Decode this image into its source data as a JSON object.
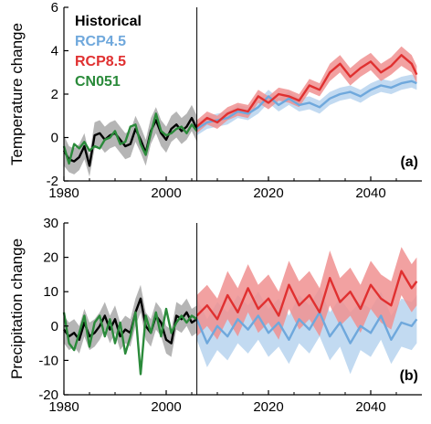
{
  "colors": {
    "historical": "#000000",
    "rcp45": "#6fa8dc",
    "rcp45_band": "#b7d3ee",
    "rcp85": "#e03030",
    "rcp85_band": "#f09090",
    "cn051": "#2a8a3a",
    "hist_band": "#a8a8a8"
  },
  "legend": {
    "historical": "Historical",
    "rcp45": "RCP4.5",
    "rcp85": "RCP8.5",
    "cn051": "CN051"
  },
  "chart_data": [
    {
      "type": "line",
      "panel_label": "(a)",
      "xlabel": "",
      "ylabel": "Temperature change",
      "xlim": [
        1980,
        2050
      ],
      "ylim": [
        -2,
        6
      ],
      "xticks": [
        1980,
        2000,
        2020,
        2040
      ],
      "yticks": [
        -2,
        0,
        2,
        4,
        6
      ],
      "divider_x": 2006,
      "legend_position": "top-left",
      "series": [
        {
          "name": "Historical",
          "key": "historical",
          "band": "hist_band",
          "x": [
            1980,
            1981,
            1982,
            1983,
            1984,
            1985,
            1986,
            1987,
            1988,
            1989,
            1990,
            1991,
            1992,
            1993,
            1994,
            1995,
            1996,
            1997,
            1998,
            1999,
            2000,
            2001,
            2002,
            2003,
            2004,
            2005,
            2006
          ],
          "values": [
            -0.6,
            -1.0,
            -1.1,
            -0.9,
            -0.4,
            -1.3,
            0.1,
            0.2,
            -0.1,
            0.1,
            0.2,
            -0.1,
            -0.4,
            -0.3,
            0.4,
            -0.1,
            -0.7,
            0.3,
            0.8,
            0.2,
            -0.1,
            0.4,
            0.6,
            0.3,
            0.5,
            0.9,
            0.4
          ],
          "lower": [
            -1.3,
            -1.6,
            -1.7,
            -1.5,
            -1.0,
            -1.8,
            -0.5,
            -0.4,
            -0.7,
            -0.5,
            -0.4,
            -0.7,
            -1.0,
            -0.9,
            -0.2,
            -0.7,
            -1.3,
            -0.3,
            0.2,
            -0.4,
            -0.7,
            -0.2,
            0.0,
            -0.3,
            -0.1,
            0.3,
            -0.2
          ],
          "upper": [
            0.1,
            -0.4,
            -0.5,
            -0.3,
            0.2,
            -0.8,
            0.7,
            0.8,
            0.5,
            0.7,
            0.8,
            0.5,
            0.2,
            0.3,
            1.0,
            0.5,
            -0.1,
            0.9,
            1.4,
            0.8,
            0.5,
            1.0,
            1.2,
            0.9,
            1.1,
            1.5,
            1.0
          ]
        },
        {
          "name": "CN051",
          "key": "cn051",
          "x": [
            1980,
            1981,
            1982,
            1983,
            1984,
            1985,
            1986,
            1987,
            1988,
            1989,
            1990,
            1991,
            1992,
            1993,
            1994,
            1995,
            1996,
            1997,
            1998,
            1999,
            2000,
            2001,
            2002,
            2003,
            2004,
            2005,
            2006
          ],
          "values": [
            -0.4,
            -1.2,
            -0.3,
            -0.5,
            -0.2,
            -0.6,
            -0.4,
            -0.5,
            -0.1,
            0.0,
            0.3,
            -0.3,
            -0.2,
            0.5,
            0.6,
            -0.3,
            -0.8,
            0.2,
            1.1,
            0.3,
            0.1,
            0.2,
            0.4,
            0.5,
            0.2,
            0.6,
            0.3
          ]
        },
        {
          "name": "RCP4.5",
          "key": "rcp45",
          "band": "rcp45_band",
          "x": [
            2006,
            2008,
            2010,
            2012,
            2014,
            2016,
            2018,
            2020,
            2022,
            2024,
            2026,
            2028,
            2030,
            2032,
            2034,
            2036,
            2038,
            2040,
            2042,
            2044,
            2046,
            2048,
            2049
          ],
          "values": [
            0.4,
            0.7,
            0.8,
            0.9,
            1.2,
            1.1,
            1.4,
            1.9,
            1.5,
            1.8,
            1.5,
            1.6,
            1.4,
            1.8,
            2.0,
            2.1,
            1.9,
            2.2,
            2.4,
            2.3,
            2.5,
            2.6,
            2.5
          ],
          "lower": [
            0.1,
            0.4,
            0.5,
            0.6,
            0.9,
            0.8,
            1.1,
            1.6,
            1.2,
            1.5,
            1.2,
            1.3,
            1.1,
            1.5,
            1.7,
            1.8,
            1.6,
            1.9,
            2.1,
            2.0,
            2.2,
            2.3,
            2.2
          ],
          "upper": [
            0.7,
            1.0,
            1.1,
            1.2,
            1.5,
            1.4,
            1.7,
            2.2,
            1.8,
            2.1,
            1.8,
            1.9,
            1.7,
            2.1,
            2.3,
            2.4,
            2.2,
            2.5,
            2.7,
            2.6,
            2.8,
            2.9,
            2.8
          ]
        },
        {
          "name": "RCP8.5",
          "key": "rcp85",
          "band": "rcp85_band",
          "x": [
            2006,
            2008,
            2010,
            2012,
            2014,
            2016,
            2018,
            2020,
            2022,
            2024,
            2026,
            2028,
            2030,
            2032,
            2034,
            2036,
            2038,
            2040,
            2042,
            2044,
            2046,
            2048,
            2049
          ],
          "values": [
            0.5,
            0.9,
            0.7,
            1.1,
            1.3,
            1.2,
            1.9,
            1.6,
            2.0,
            1.9,
            1.7,
            2.4,
            2.2,
            3.0,
            3.4,
            2.8,
            3.2,
            3.5,
            3.0,
            3.3,
            3.8,
            3.4,
            2.9
          ],
          "lower": [
            0.2,
            0.6,
            0.4,
            0.8,
            1.0,
            0.9,
            1.6,
            1.3,
            1.7,
            1.6,
            1.4,
            2.1,
            1.9,
            2.6,
            3.0,
            2.4,
            2.8,
            3.1,
            2.6,
            2.9,
            3.3,
            3.0,
            2.5
          ],
          "upper": [
            0.8,
            1.2,
            1.0,
            1.4,
            1.6,
            1.5,
            2.2,
            1.9,
            2.3,
            2.2,
            2.0,
            2.7,
            2.5,
            3.4,
            3.8,
            3.2,
            3.6,
            3.9,
            3.4,
            3.7,
            4.2,
            3.8,
            3.3
          ]
        }
      ]
    },
    {
      "type": "line",
      "panel_label": "(b)",
      "xlabel": "",
      "ylabel": "Precipitation change",
      "xlim": [
        1980,
        2050
      ],
      "ylim": [
        -20,
        30
      ],
      "xticks": [
        1980,
        2000,
        2020,
        2040
      ],
      "yticks": [
        -20,
        -10,
        0,
        10,
        20,
        30
      ],
      "divider_x": 2006,
      "series": [
        {
          "name": "Historical",
          "key": "historical",
          "band": "hist_band",
          "x": [
            1980,
            1981,
            1982,
            1983,
            1984,
            1985,
            1986,
            1987,
            1988,
            1989,
            1990,
            1991,
            1992,
            1993,
            1994,
            1995,
            1996,
            1997,
            1998,
            1999,
            2000,
            2001,
            2002,
            2003,
            2004,
            2005,
            2006
          ],
          "values": [
            -1,
            -3,
            -2,
            -4,
            1,
            -3,
            -2,
            0,
            3,
            -1,
            2,
            -3,
            -1,
            -2,
            4,
            8,
            0,
            -2,
            3,
            1,
            -4,
            -5,
            3,
            2,
            4,
            1,
            2
          ],
          "lower": [
            -5,
            -7,
            -6,
            -8,
            -3,
            -7,
            -6,
            -4,
            -1,
            -5,
            -2,
            -7,
            -5,
            -6,
            0,
            4,
            -4,
            -6,
            -1,
            -3,
            -8,
            -9,
            -1,
            -2,
            0,
            -3,
            -2
          ],
          "upper": [
            3,
            1,
            2,
            0,
            5,
            1,
            2,
            4,
            7,
            3,
            6,
            1,
            3,
            2,
            8,
            12,
            4,
            2,
            7,
            5,
            0,
            -1,
            7,
            6,
            8,
            5,
            6
          ]
        },
        {
          "name": "CN051",
          "key": "cn051",
          "x": [
            1980,
            1981,
            1982,
            1983,
            1984,
            1985,
            1986,
            1987,
            1988,
            1989,
            1990,
            1991,
            1992,
            1993,
            1994,
            1995,
            1996,
            1997,
            1998,
            1999,
            2000,
            2001,
            2002,
            2003,
            2004,
            2005,
            2006
          ],
          "values": [
            4,
            -5,
            -7,
            -2,
            3,
            -6,
            1,
            3,
            -3,
            2,
            -5,
            1,
            -8,
            -3,
            4,
            -14,
            3,
            -2,
            4,
            -3,
            5,
            -2,
            1,
            3,
            1,
            3,
            2
          ]
        },
        {
          "name": "RCP4.5",
          "key": "rcp45",
          "band": "rcp45_band",
          "x": [
            2006,
            2008,
            2010,
            2012,
            2014,
            2016,
            2018,
            2020,
            2022,
            2024,
            2026,
            2028,
            2030,
            2032,
            2034,
            2036,
            2038,
            2040,
            2042,
            2044,
            2046,
            2048,
            2049
          ],
          "values": [
            2,
            -5,
            0,
            -3,
            2,
            -1,
            3,
            -2,
            1,
            -4,
            2,
            -1,
            4,
            -3,
            1,
            -5,
            0,
            -2,
            3,
            -4,
            1,
            0,
            2
          ],
          "lower": [
            -4,
            -12,
            -7,
            -10,
            -5,
            -8,
            -4,
            -9,
            -6,
            -11,
            -5,
            -8,
            -3,
            -10,
            -6,
            -14,
            -7,
            -9,
            -4,
            -11,
            -6,
            -7,
            -5
          ],
          "upper": [
            8,
            2,
            7,
            4,
            9,
            6,
            10,
            5,
            8,
            3,
            9,
            6,
            11,
            4,
            8,
            4,
            7,
            5,
            10,
            3,
            8,
            7,
            9
          ]
        },
        {
          "name": "RCP8.5",
          "key": "rcp85",
          "band": "rcp85_band",
          "x": [
            2006,
            2008,
            2010,
            2012,
            2014,
            2016,
            2018,
            2020,
            2022,
            2024,
            2026,
            2028,
            2030,
            2032,
            2034,
            2036,
            2038,
            2040,
            2042,
            2044,
            2046,
            2048,
            2049
          ],
          "values": [
            3,
            6,
            2,
            9,
            4,
            11,
            5,
            8,
            3,
            12,
            6,
            9,
            4,
            14,
            7,
            10,
            5,
            12,
            8,
            6,
            16,
            11,
            13
          ],
          "lower": [
            -3,
            0,
            -4,
            2,
            -3,
            4,
            -2,
            1,
            -4,
            5,
            -1,
            2,
            -3,
            6,
            0,
            3,
            -2,
            5,
            1,
            -1,
            9,
            4,
            6
          ],
          "upper": [
            9,
            12,
            8,
            16,
            11,
            18,
            12,
            15,
            10,
            19,
            13,
            16,
            11,
            22,
            14,
            17,
            12,
            19,
            15,
            13,
            23,
            18,
            20
          ]
        }
      ]
    }
  ]
}
